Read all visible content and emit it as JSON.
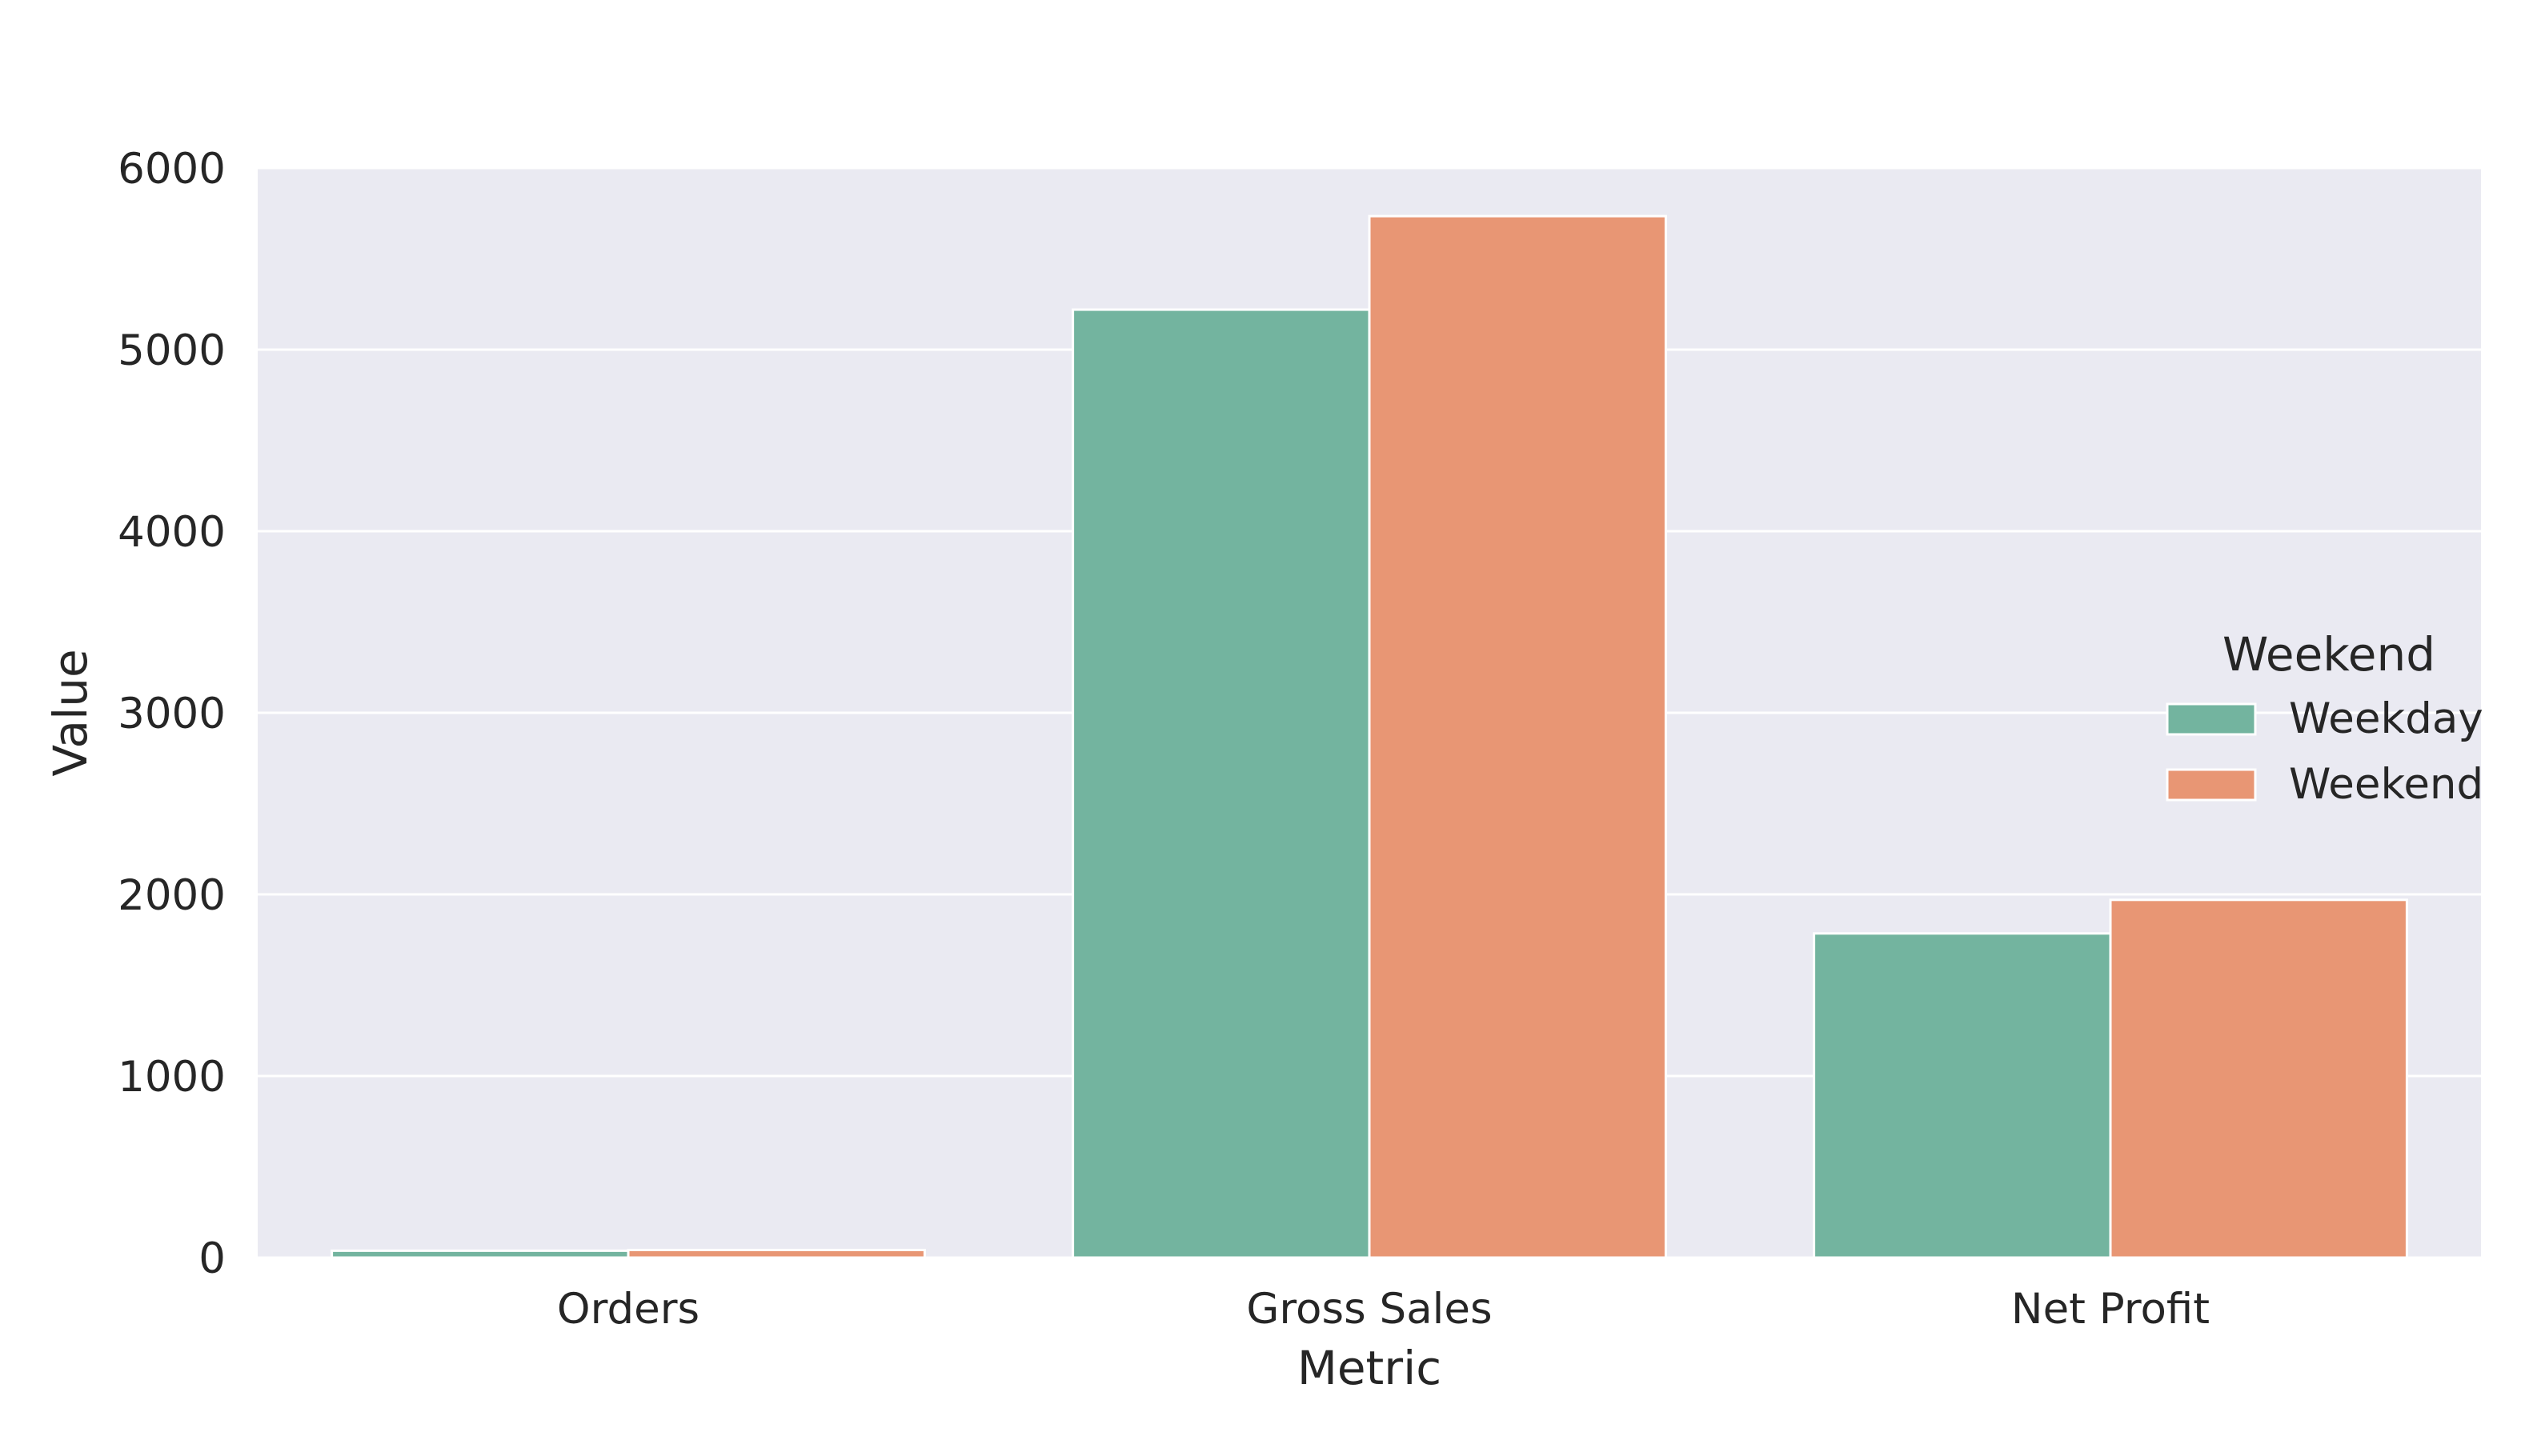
{
  "chart_data": {
    "type": "bar",
    "categories": [
      "Orders",
      "Gross Sales",
      "Net Profit"
    ],
    "series": [
      {
        "name": "Weekday",
        "values": [
          38,
          5220,
          1785
        ],
        "color": "#73b49f"
      },
      {
        "name": "Weekend",
        "values": [
          42,
          5735,
          1970
        ],
        "color": "#e89674"
      }
    ],
    "title": "",
    "xlabel": "Metric",
    "ylabel": "Value",
    "ylim": [
      0,
      6000
    ],
    "yticks": [
      0,
      1000,
      2000,
      3000,
      4000,
      5000,
      6000
    ],
    "grid": true,
    "legend": {
      "title": "Weekend",
      "position": "right"
    },
    "background": "#eaeaf2",
    "grid_color": "#ffffff"
  }
}
